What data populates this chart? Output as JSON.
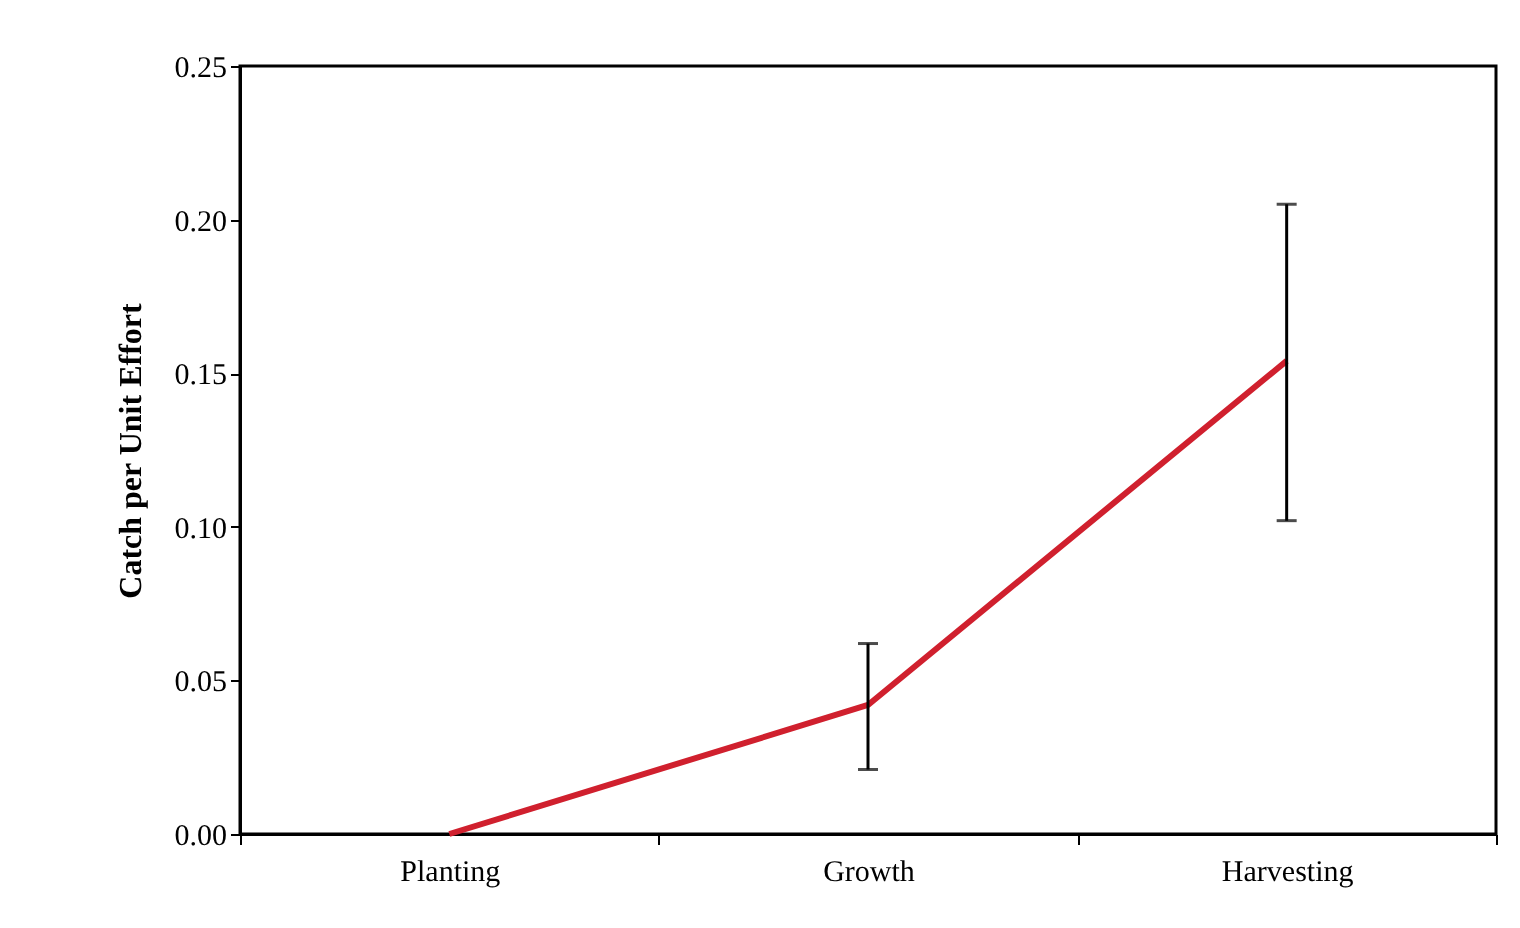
{
  "chart_data": {
    "type": "line",
    "ylabel": "Catch per Unit Effort",
    "categories": [
      "Planting",
      "Growth",
      "Harvesting"
    ],
    "series": [
      {
        "color": "#d0202e",
        "values": [
          0.0,
          0.042,
          0.154
        ],
        "errors": [
          null,
          [
            0.021,
            0.062
          ],
          [
            0.102,
            0.205
          ]
        ]
      }
    ],
    "ylim": [
      0,
      0.25
    ],
    "yticks": [
      {
        "value": 0,
        "label": "0.00"
      },
      {
        "value": 0.05,
        "label": "0.05"
      },
      {
        "value": 0.1,
        "label": "0.10"
      },
      {
        "value": 0.15,
        "label": "0.15"
      },
      {
        "value": 0.2,
        "label": "0.20"
      },
      {
        "value": 0.25,
        "label": "0.25"
      }
    ],
    "grid": false,
    "marker": "none"
  }
}
